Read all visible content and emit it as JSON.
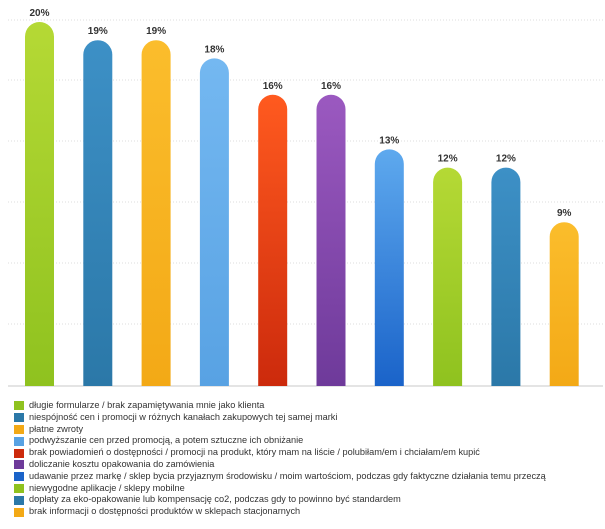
{
  "chart_data": {
    "type": "bar",
    "title": "",
    "xlabel": "",
    "ylabel": "",
    "ylim": [
      0,
      20
    ],
    "grid": true,
    "legend_position": "bottom",
    "categories": [
      "długie formularze / brak zapamiętywania mnie jako klienta",
      "niespójność cen i promocji w różnych kanałach zakupowych tej samej marki",
      "płatne zwroty",
      "podwyższanie cen przed promocją, a potem sztuczne ich obniżanie",
      "brak powiadomień o dostępności / promocji na produkt, który mam na liście / polubiłam/em i chciałam/em kupić",
      "doliczanie kosztu opakowania do zamówienia",
      "udawanie przez markę / sklep bycia przyjaznym środowisku / moim wartościom, podczas gdy faktyczne działania temu przeczą",
      "niewygodne aplikacje / sklepy mobilne",
      "dopłaty za eko-opakowanie lub kompensację co2, podczas gdy to powinno być standardem",
      "brak informacji o dostępności produktów w sklepach stacjonarnych"
    ],
    "values": [
      20,
      19,
      19,
      18,
      16,
      16,
      13,
      12,
      12,
      9
    ],
    "value_labels": [
      "20%",
      "19%",
      "19%",
      "18%",
      "16%",
      "16%",
      "13%",
      "12%",
      "12%",
      "9%"
    ],
    "colors": [
      {
        "top": "#b5d935",
        "bottom": "#8fc21f"
      },
      {
        "top": "#3d90c6",
        "bottom": "#2b78a8"
      },
      {
        "top": "#fbbd2c",
        "bottom": "#f3a916"
      },
      {
        "top": "#74b8f1",
        "bottom": "#58a2e3"
      },
      {
        "top": "#ff5a1f",
        "bottom": "#cc2a0c"
      },
      {
        "top": "#9b59c0",
        "bottom": "#6e3a9a"
      },
      {
        "top": "#5ea9ee",
        "bottom": "#1a63c9"
      },
      {
        "top": "#b5d935",
        "bottom": "#8fc21f"
      },
      {
        "top": "#3d90c6",
        "bottom": "#2b78a8"
      },
      {
        "top": "#fbbd2c",
        "bottom": "#f3a916"
      }
    ]
  }
}
